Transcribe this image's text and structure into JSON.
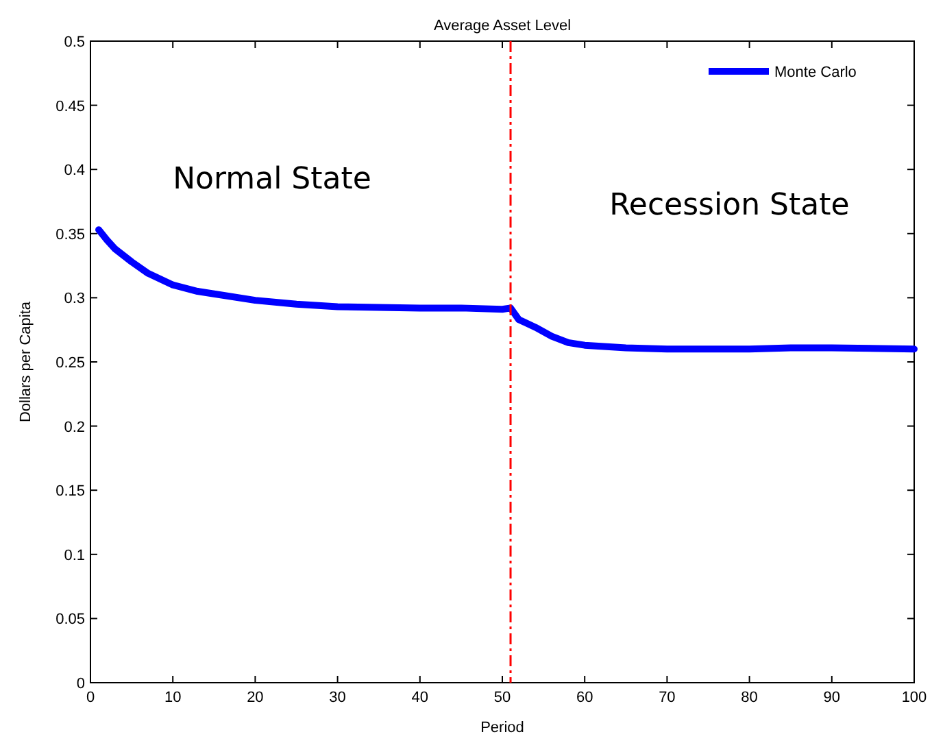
{
  "chart_data": {
    "type": "line",
    "title": "Average Asset Level",
    "xlabel": "Period",
    "ylabel": "Dollars per Capita",
    "xlim": [
      0,
      100
    ],
    "xticks": [
      0,
      10,
      20,
      30,
      40,
      50,
      60,
      70,
      80,
      90,
      100
    ],
    "ylim": [
      0,
      0.5
    ],
    "yticks": [
      0,
      0.05,
      0.1,
      0.15,
      0.2,
      0.25,
      0.3,
      0.35,
      0.4,
      0.45,
      0.5
    ],
    "grid": false,
    "legend": "top right",
    "line_style": "solid",
    "marker": "none",
    "series": [
      {
        "name": "Monte Carlo",
        "color": "#0000ff",
        "x": [
          1,
          2,
          3,
          5,
          7,
          10,
          13,
          15,
          20,
          25,
          30,
          40,
          45,
          50,
          51,
          52,
          54,
          56,
          58,
          60,
          65,
          70,
          80,
          85,
          90,
          100
        ],
        "values": [
          0.353,
          0.345,
          0.338,
          0.328,
          0.319,
          0.31,
          0.305,
          0.303,
          0.298,
          0.295,
          0.293,
          0.292,
          0.292,
          0.291,
          0.292,
          0.283,
          0.277,
          0.27,
          0.265,
          0.263,
          0.261,
          0.26,
          0.26,
          0.261,
          0.261,
          0.26
        ]
      }
    ],
    "ref_lines": [
      {
        "axis": "x",
        "value": 51,
        "color": "#ff0000",
        "line_style": "dashdot"
      }
    ],
    "annotations": [
      "Normal State",
      "Recession State"
    ]
  }
}
